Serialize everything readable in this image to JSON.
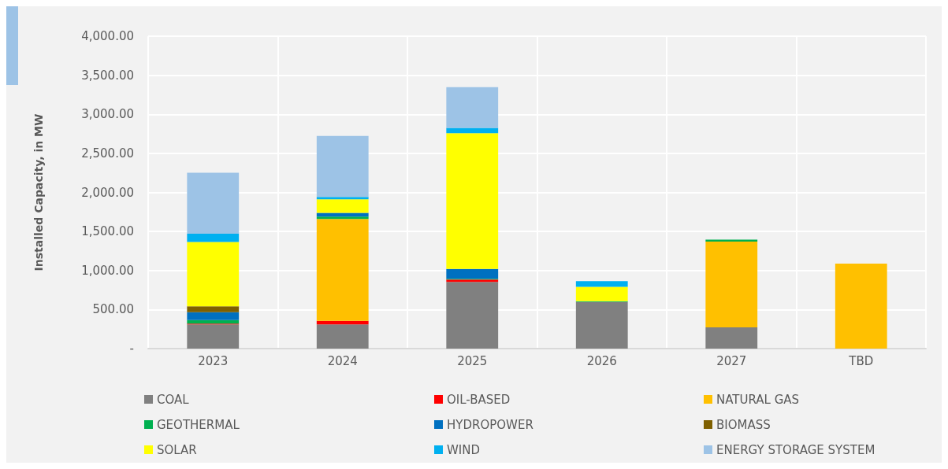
{
  "chart_data": {
    "type": "bar",
    "ylabel": "Installed Capacity, in MW",
    "categories": [
      "2023",
      "2024",
      "2025",
      "2026",
      "2027",
      "TBD"
    ],
    "stacked": true,
    "grid": true,
    "legend": "bottom",
    "ylim": [
      0,
      4000
    ],
    "yticks": [
      {
        "value": 0,
        "label": "-"
      },
      {
        "value": 500,
        "label": "500.00"
      },
      {
        "value": 1000,
        "label": "1,000.00"
      },
      {
        "value": 1500,
        "label": "1,500.00"
      },
      {
        "value": 2000,
        "label": "2,000.00"
      },
      {
        "value": 2500,
        "label": "2,500.00"
      },
      {
        "value": 3000,
        "label": "3,000.00"
      },
      {
        "value": 3500,
        "label": "3,500.00"
      },
      {
        "value": 4000,
        "label": "4,000.00"
      }
    ],
    "series": [
      {
        "name": "COAL",
        "color": "#808080",
        "values": [
          309,
          309,
          853,
          596,
          273,
          0
        ]
      },
      {
        "name": "OIL-BASED",
        "color": "#ff0000",
        "values": [
          10,
          45,
          32,
          0,
          0,
          0
        ]
      },
      {
        "name": "NATURAL GAS",
        "color": "#ffc000",
        "values": [
          0,
          1307,
          0,
          0,
          1098,
          1089
        ]
      },
      {
        "name": "GEOTHERMAL",
        "color": "#00b050",
        "values": [
          45,
          29,
          10,
          10,
          25,
          0
        ]
      },
      {
        "name": "HYDROPOWER",
        "color": "#0070c0",
        "values": [
          103,
          48,
          126,
          0,
          0,
          0
        ]
      },
      {
        "name": "BIOMASS",
        "color": "#7f6000",
        "values": [
          75,
          0,
          0,
          0,
          0,
          0
        ]
      },
      {
        "name": "SOLAR",
        "color": "#ffff00",
        "values": [
          824,
          174,
          1736,
          186,
          0,
          0
        ]
      },
      {
        "name": "WIND",
        "color": "#00b0f0",
        "values": [
          106,
          29,
          68,
          71,
          0,
          0
        ]
      },
      {
        "name": "ENERGY STORAGE SYSTEM",
        "color": "#9dc3e6",
        "values": [
          780,
          782,
          522,
          0,
          0,
          0
        ]
      }
    ]
  }
}
